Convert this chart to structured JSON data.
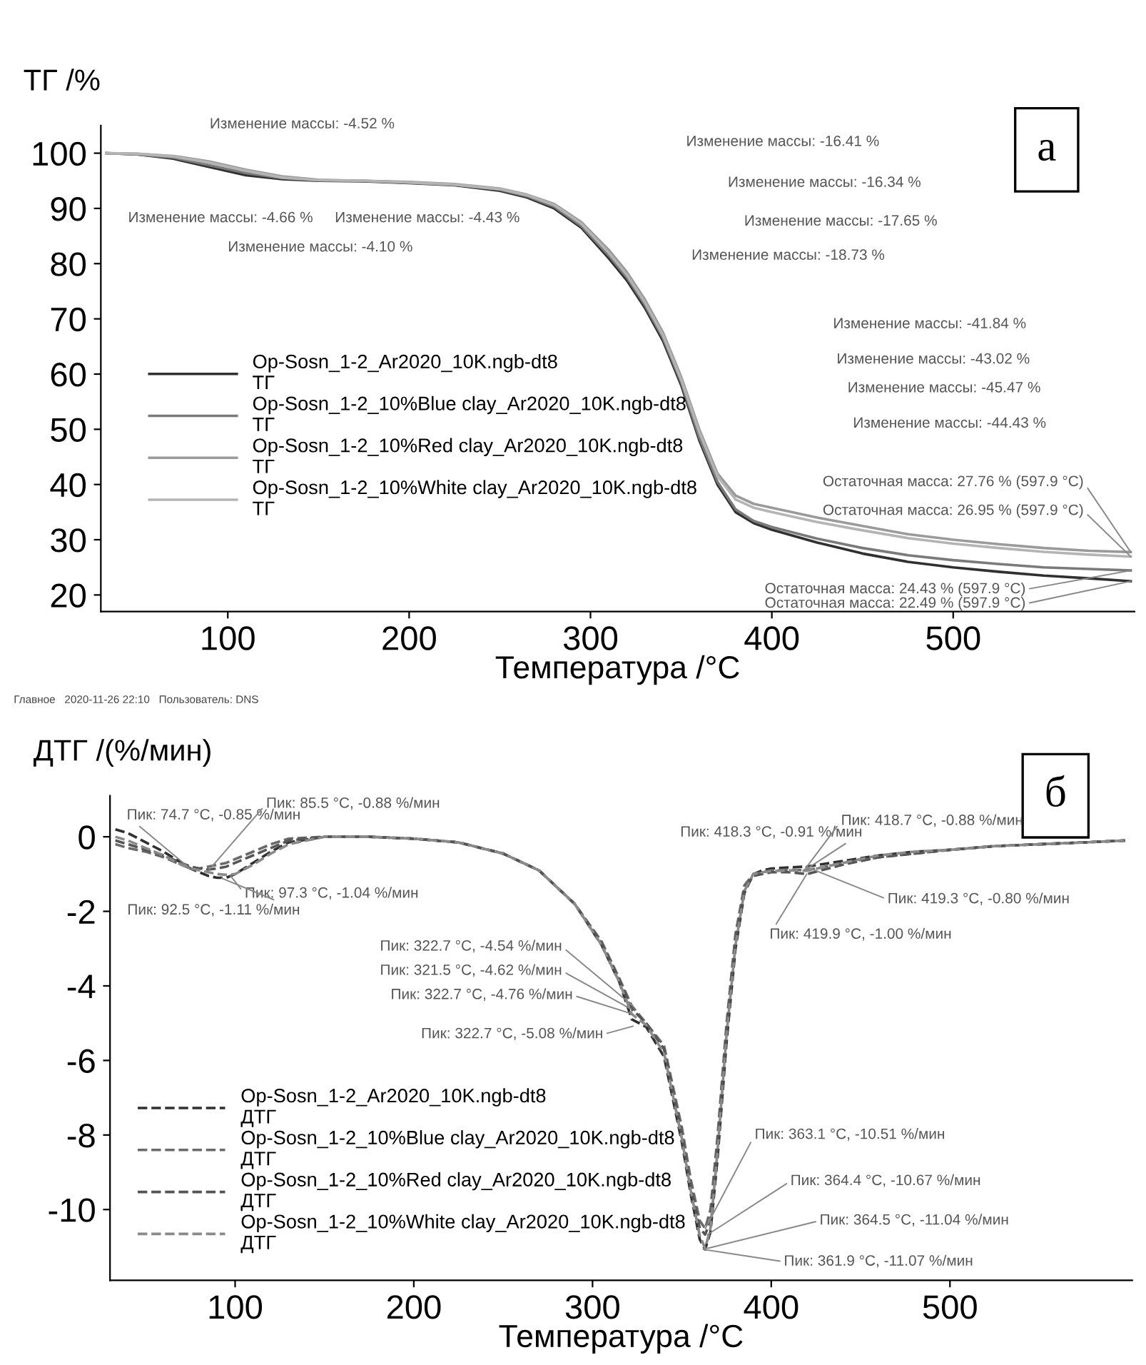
{
  "chart_data": [
    {
      "type": "line",
      "ylabel": "ТГ /%",
      "xlabel": "Температура /°C",
      "x": [
        33,
        50,
        70,
        90,
        110,
        130,
        150,
        175,
        200,
        225,
        250,
        265,
        280,
        295,
        310,
        320,
        330,
        340,
        350,
        360,
        370,
        380,
        390,
        400,
        425,
        450,
        475,
        500,
        525,
        550,
        575,
        597.9
      ],
      "series": [
        {
          "name": "Op-Sosn_1-2_Ar2020_10K.ngb-dt8\nТГ",
          "color": "#303030",
          "values": [
            100,
            99.8,
            99,
            97.5,
            96,
            95.3,
            95,
            94.9,
            94.6,
            94.2,
            93.2,
            92,
            90,
            86.5,
            81,
            77,
            72,
            66,
            58,
            48,
            40,
            35,
            33,
            31.8,
            29.5,
            27.5,
            26,
            25,
            24.2,
            23.5,
            23,
            22.49
          ]
        },
        {
          "name": "Op-Sosn_1-2_10%Blue clay_Ar2020_10K.ngb-dt8\nТГ",
          "color": "#7a7a7a",
          "values": [
            100,
            99.8,
            99.2,
            97.8,
            96.4,
            95.5,
            95.1,
            95,
            94.7,
            94.3,
            93.4,
            92.2,
            90.3,
            86.8,
            81.5,
            77.5,
            72.5,
            66.5,
            58.5,
            48.5,
            40.5,
            35.5,
            33.4,
            32.3,
            30.2,
            28.5,
            27.2,
            26.3,
            25.6,
            25,
            24.7,
            24.43
          ]
        },
        {
          "name": "Op-Sosn_1-2_10%Red clay_Ar2020_10K.ngb-dt8\nТГ",
          "color": "#9a9a9a",
          "values": [
            100,
            99.9,
            99.5,
            98.5,
            97,
            95.8,
            95.2,
            95,
            94.8,
            94.4,
            93.6,
            92.5,
            90.8,
            87.5,
            82.5,
            78.5,
            73.5,
            67.5,
            59.5,
            50,
            42,
            38,
            36.5,
            35.8,
            34,
            32.5,
            31,
            30,
            29.2,
            28.5,
            28,
            27.76
          ]
        },
        {
          "name": "Op-Sosn_1-2_10%White clay_Ar2020_10K.ngb-dt8\nТГ",
          "color": "#b4b4b4",
          "values": [
            100,
            99.9,
            99.4,
            98.3,
            96.8,
            95.6,
            95.1,
            95,
            94.7,
            94.3,
            93.5,
            92.4,
            90.6,
            87.2,
            82,
            78,
            73,
            67,
            59,
            49.5,
            41.5,
            37.3,
            35.8,
            35,
            33.2,
            31.7,
            30.3,
            29.3,
            28.5,
            27.8,
            27.3,
            26.95
          ]
        }
      ],
      "xlim": [
        30,
        600
      ],
      "xticks": [
        100,
        200,
        300,
        400,
        500
      ],
      "ylim": [
        17,
        105
      ],
      "yticks": [
        20,
        30,
        40,
        50,
        60,
        70,
        80,
        90,
        100
      ],
      "legend": "left",
      "line_style": "solid",
      "annotations": [
        "Изменение массы: -4.52 %",
        "Изменение массы: -4.66 %",
        "Изменение массы: -4.43 %",
        "Изменение массы: -4.10 %",
        "Изменение массы: -16.41 %",
        "Изменение массы: -16.34 %",
        "Изменение массы: -17.65 %",
        "Изменение массы: -18.73 %",
        "Изменение массы: -41.84 %",
        "Изменение массы: -43.02 %",
        "Изменение массы: -45.47 %",
        "Изменение массы: -44.43 %",
        {
          "text": "Остаточная масса: 27.76 % (597.9 °C)",
          "x": 597.9,
          "y": 27.76
        },
        {
          "text": "Остаточная масса: 26.95 % (597.9 °C)",
          "x": 597.9,
          "y": 26.95
        },
        {
          "text": "Остаточная масса: 24.43 % (597.9 °C)",
          "x": 597.9,
          "y": 24.43
        },
        {
          "text": "Остаточная масса: 22.49 % (597.9 °C)",
          "x": 597.9,
          "y": 22.49
        },
        "а",
        "Главное   2020-11-26 22:10   Пользователь: DNS"
      ]
    },
    {
      "type": "line",
      "ylabel": "ДТГ /(%/мин)",
      "xlabel": "Температура /°C",
      "x": [
        33,
        40,
        50,
        60,
        70,
        75,
        80,
        85,
        90,
        95,
        100,
        110,
        120,
        130,
        150,
        175,
        200,
        225,
        250,
        270,
        290,
        305,
        315,
        322,
        330,
        340,
        350,
        355,
        360,
        363,
        366,
        370,
        375,
        380,
        385,
        390,
        395,
        400,
        410,
        420,
        440,
        460,
        480,
        500,
        525,
        550,
        575,
        597.9
      ],
      "series": [
        {
          "name": "Op-Sosn_1-2_Ar2020_10K.ngb-dt8\nДТГ",
          "color": "#303030",
          "values": [
            0.2,
            0.1,
            -0.15,
            -0.4,
            -0.7,
            -0.85,
            -0.95,
            -1.05,
            -1.1,
            -1.1,
            -1.0,
            -0.7,
            -0.4,
            -0.15,
            0,
            0,
            -0.05,
            -0.15,
            -0.45,
            -0.9,
            -1.8,
            -2.9,
            -3.9,
            -4.9,
            -5.1,
            -5.9,
            -8.2,
            -9.6,
            -10.8,
            -11.07,
            -10.6,
            -8.6,
            -5.5,
            -3,
            -1.5,
            -1.0,
            -0.9,
            -0.85,
            -0.82,
            -0.8,
            -0.65,
            -0.5,
            -0.4,
            -0.35,
            -0.25,
            -0.2,
            -0.15,
            -0.1
          ]
        },
        {
          "name": "Op-Sosn_1-2_10%Blue clay_Ar2020_10K.ngb-dt8\nДТГ",
          "color": "#6a6a6a",
          "values": [
            -0.2,
            -0.3,
            -0.4,
            -0.55,
            -0.75,
            -0.85,
            -0.85,
            -0.8,
            -0.75,
            -0.7,
            -0.6,
            -0.4,
            -0.2,
            -0.05,
            0,
            0,
            -0.05,
            -0.15,
            -0.45,
            -0.9,
            -1.8,
            -2.8,
            -3.8,
            -4.54,
            -5.0,
            -5.6,
            -7.8,
            -9.2,
            -10.3,
            -10.51,
            -10.0,
            -8.0,
            -5.0,
            -2.6,
            -1.3,
            -1.0,
            -0.95,
            -0.9,
            -0.88,
            -0.9,
            -0.7,
            -0.55,
            -0.45,
            -0.35,
            -0.25,
            -0.2,
            -0.15,
            -0.1
          ]
        },
        {
          "name": "Op-Sosn_1-2_10%Red clay_Ar2020_10K.ngb-dt8\nДТГ",
          "color": "#555555",
          "values": [
            -0.1,
            -0.2,
            -0.35,
            -0.5,
            -0.7,
            -0.8,
            -0.85,
            -0.88,
            -0.85,
            -0.8,
            -0.7,
            -0.5,
            -0.3,
            -0.1,
            0,
            0,
            -0.05,
            -0.15,
            -0.45,
            -0.9,
            -1.8,
            -2.85,
            -3.85,
            -4.62,
            -5.0,
            -5.7,
            -8.0,
            -9.4,
            -10.5,
            -10.67,
            -10.3,
            -8.3,
            -5.2,
            -2.8,
            -1.4,
            -1.05,
            -1.0,
            -0.95,
            -0.95,
            -1.0,
            -0.75,
            -0.55,
            -0.45,
            -0.35,
            -0.25,
            -0.2,
            -0.15,
            -0.1
          ]
        },
        {
          "name": "Op-Sosn_1-2_10%White clay_Ar2020_10K.ngb-dt8\nДТГ",
          "color": "#8a8a8a",
          "values": [
            0.0,
            -0.1,
            -0.3,
            -0.5,
            -0.75,
            -0.85,
            -0.9,
            -0.95,
            -1.0,
            -1.02,
            -1.0,
            -0.75,
            -0.45,
            -0.2,
            0,
            0,
            -0.05,
            -0.15,
            -0.45,
            -0.9,
            -1.8,
            -2.9,
            -3.9,
            -4.76,
            -5.05,
            -5.8,
            -8.1,
            -9.5,
            -10.7,
            -11.04,
            -10.5,
            -8.4,
            -5.3,
            -2.9,
            -1.45,
            -1.0,
            -0.95,
            -0.92,
            -0.9,
            -0.91,
            -0.7,
            -0.5,
            -0.4,
            -0.35,
            -0.25,
            -0.2,
            -0.15,
            -0.1
          ]
        }
      ],
      "xlim": [
        30,
        602
      ],
      "xticks": [
        100,
        200,
        300,
        400,
        500
      ],
      "ylim": [
        -11.9,
        1.1
      ],
      "yticks": [
        -10,
        -8,
        -6,
        -4,
        -2,
        0
      ],
      "legend": "bottom left",
      "line_style": "dashed",
      "annotations": [
        {
          "text": "Пик: 74.7 °C, -0.85 %/мин",
          "x": 74.7,
          "y": -0.85
        },
        {
          "text": "Пик: 85.5 °C, -0.88 %/мин",
          "x": 85.5,
          "y": -0.88
        },
        {
          "text": "Пик: 97.3 °C, -1.04 %/мин",
          "x": 97.3,
          "y": -1.04
        },
        {
          "text": "Пик: 92.5 °C, -1.11 %/мин",
          "x": 92.5,
          "y": -1.11
        },
        {
          "text": "Пик: 322.7 °C, -4.54 %/мин",
          "x": 322.7,
          "y": -4.54
        },
        {
          "text": "Пик: 321.5 °C, -4.62 %/мин",
          "x": 321.5,
          "y": -4.62
        },
        {
          "text": "Пик: 322.7 °C, -4.76 %/мин",
          "x": 322.7,
          "y": -4.76
        },
        {
          "text": "Пик: 322.7 °C, -5.08 %/мин",
          "x": 322.7,
          "y": -5.08
        },
        {
          "text": "Пик: 418.3 °C, -0.91 %/мин",
          "x": 418.3,
          "y": -0.91
        },
        {
          "text": "Пик: 418.7 °C, -0.88 %/мин",
          "x": 418.7,
          "y": -0.88
        },
        {
          "text": "Пик: 419.3 °C, -0.80 %/мин",
          "x": 419.3,
          "y": -0.8
        },
        {
          "text": "Пик: 419.9 °C, -1.00 %/мин",
          "x": 419.9,
          "y": -1.0
        },
        {
          "text": "Пик: 363.1 °C, -10.51 %/мин",
          "x": 363.1,
          "y": -10.51
        },
        {
          "text": "Пик: 364.4 °C, -10.67 %/мин",
          "x": 364.4,
          "y": -10.67
        },
        {
          "text": "Пик: 364.5 °C, -11.04 %/мин",
          "x": 364.5,
          "y": -11.04
        },
        {
          "text": "Пик: 361.9 °C, -11.07 %/мин",
          "x": 361.9,
          "y": -11.07
        },
        "б"
      ]
    }
  ]
}
